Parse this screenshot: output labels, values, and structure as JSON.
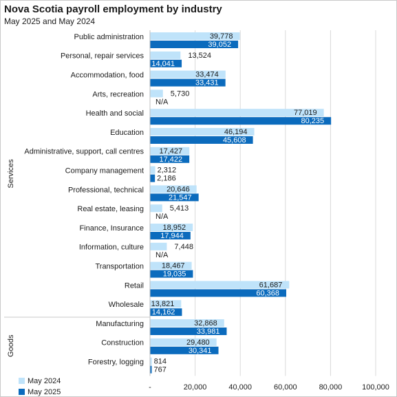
{
  "chart_data": {
    "type": "bar",
    "orientation": "horizontal",
    "title": "Nova Scotia payroll employment by industry",
    "subtitle": "May 2025 and May 2024",
    "categories": [
      "Public administration",
      "Personal, repair services",
      "Accommodation, food",
      "Arts, recreation",
      "Health and social",
      "Education",
      "Administrative, support, call centres",
      "Company management",
      "Professional, technical",
      "Real estate, leasing",
      "Finance, Insurance",
      "Information, culture",
      "Transportation",
      "Retail",
      "Wholesale",
      "Manufacturing",
      "Construction",
      "Forestry, logging"
    ],
    "groups": [
      {
        "name": "Services",
        "count": 15
      },
      {
        "name": "Goods",
        "count": 3
      }
    ],
    "series": [
      {
        "name": "May 2024",
        "color": "#bfe3fa",
        "values": [
          39778,
          13524,
          33474,
          5730,
          77019,
          46194,
          17427,
          2312,
          20646,
          5413,
          18952,
          7448,
          18467,
          61687,
          13821,
          32868,
          29480,
          814
        ],
        "labels": [
          "39,778",
          "13,524",
          "33,474",
          "5,730",
          "77,019",
          "46,194",
          "17,427",
          "2,312",
          "20,646",
          "5,413",
          "18,952",
          "7,448",
          "18,467",
          "61,687",
          "13,821",
          "32,868",
          "29,480",
          "814"
        ]
      },
      {
        "name": "May 2025",
        "color": "#0b6bbd",
        "values": [
          39052,
          14041,
          33431,
          null,
          80235,
          45608,
          17422,
          2186,
          21547,
          null,
          17944,
          null,
          19035,
          60368,
          14162,
          33981,
          30341,
          767
        ],
        "labels": [
          "39,052",
          "14,041",
          "33,431",
          "N/A",
          "80,235",
          "45,608",
          "17,422",
          "2,186",
          "21,547",
          "N/A",
          "17,944",
          "N/A",
          "19,035",
          "60,368",
          "14,162",
          "33,981",
          "30,341",
          "767"
        ]
      }
    ],
    "xlim": [
      0,
      100000
    ],
    "x_ticks": [
      0,
      20000,
      40000,
      60000,
      80000,
      100000
    ],
    "x_tick_labels": [
      "-",
      "20,000",
      "40,000",
      "60,000",
      "80,000",
      "100,000"
    ],
    "grid": "vertical",
    "legend_position": "bottom-left"
  }
}
